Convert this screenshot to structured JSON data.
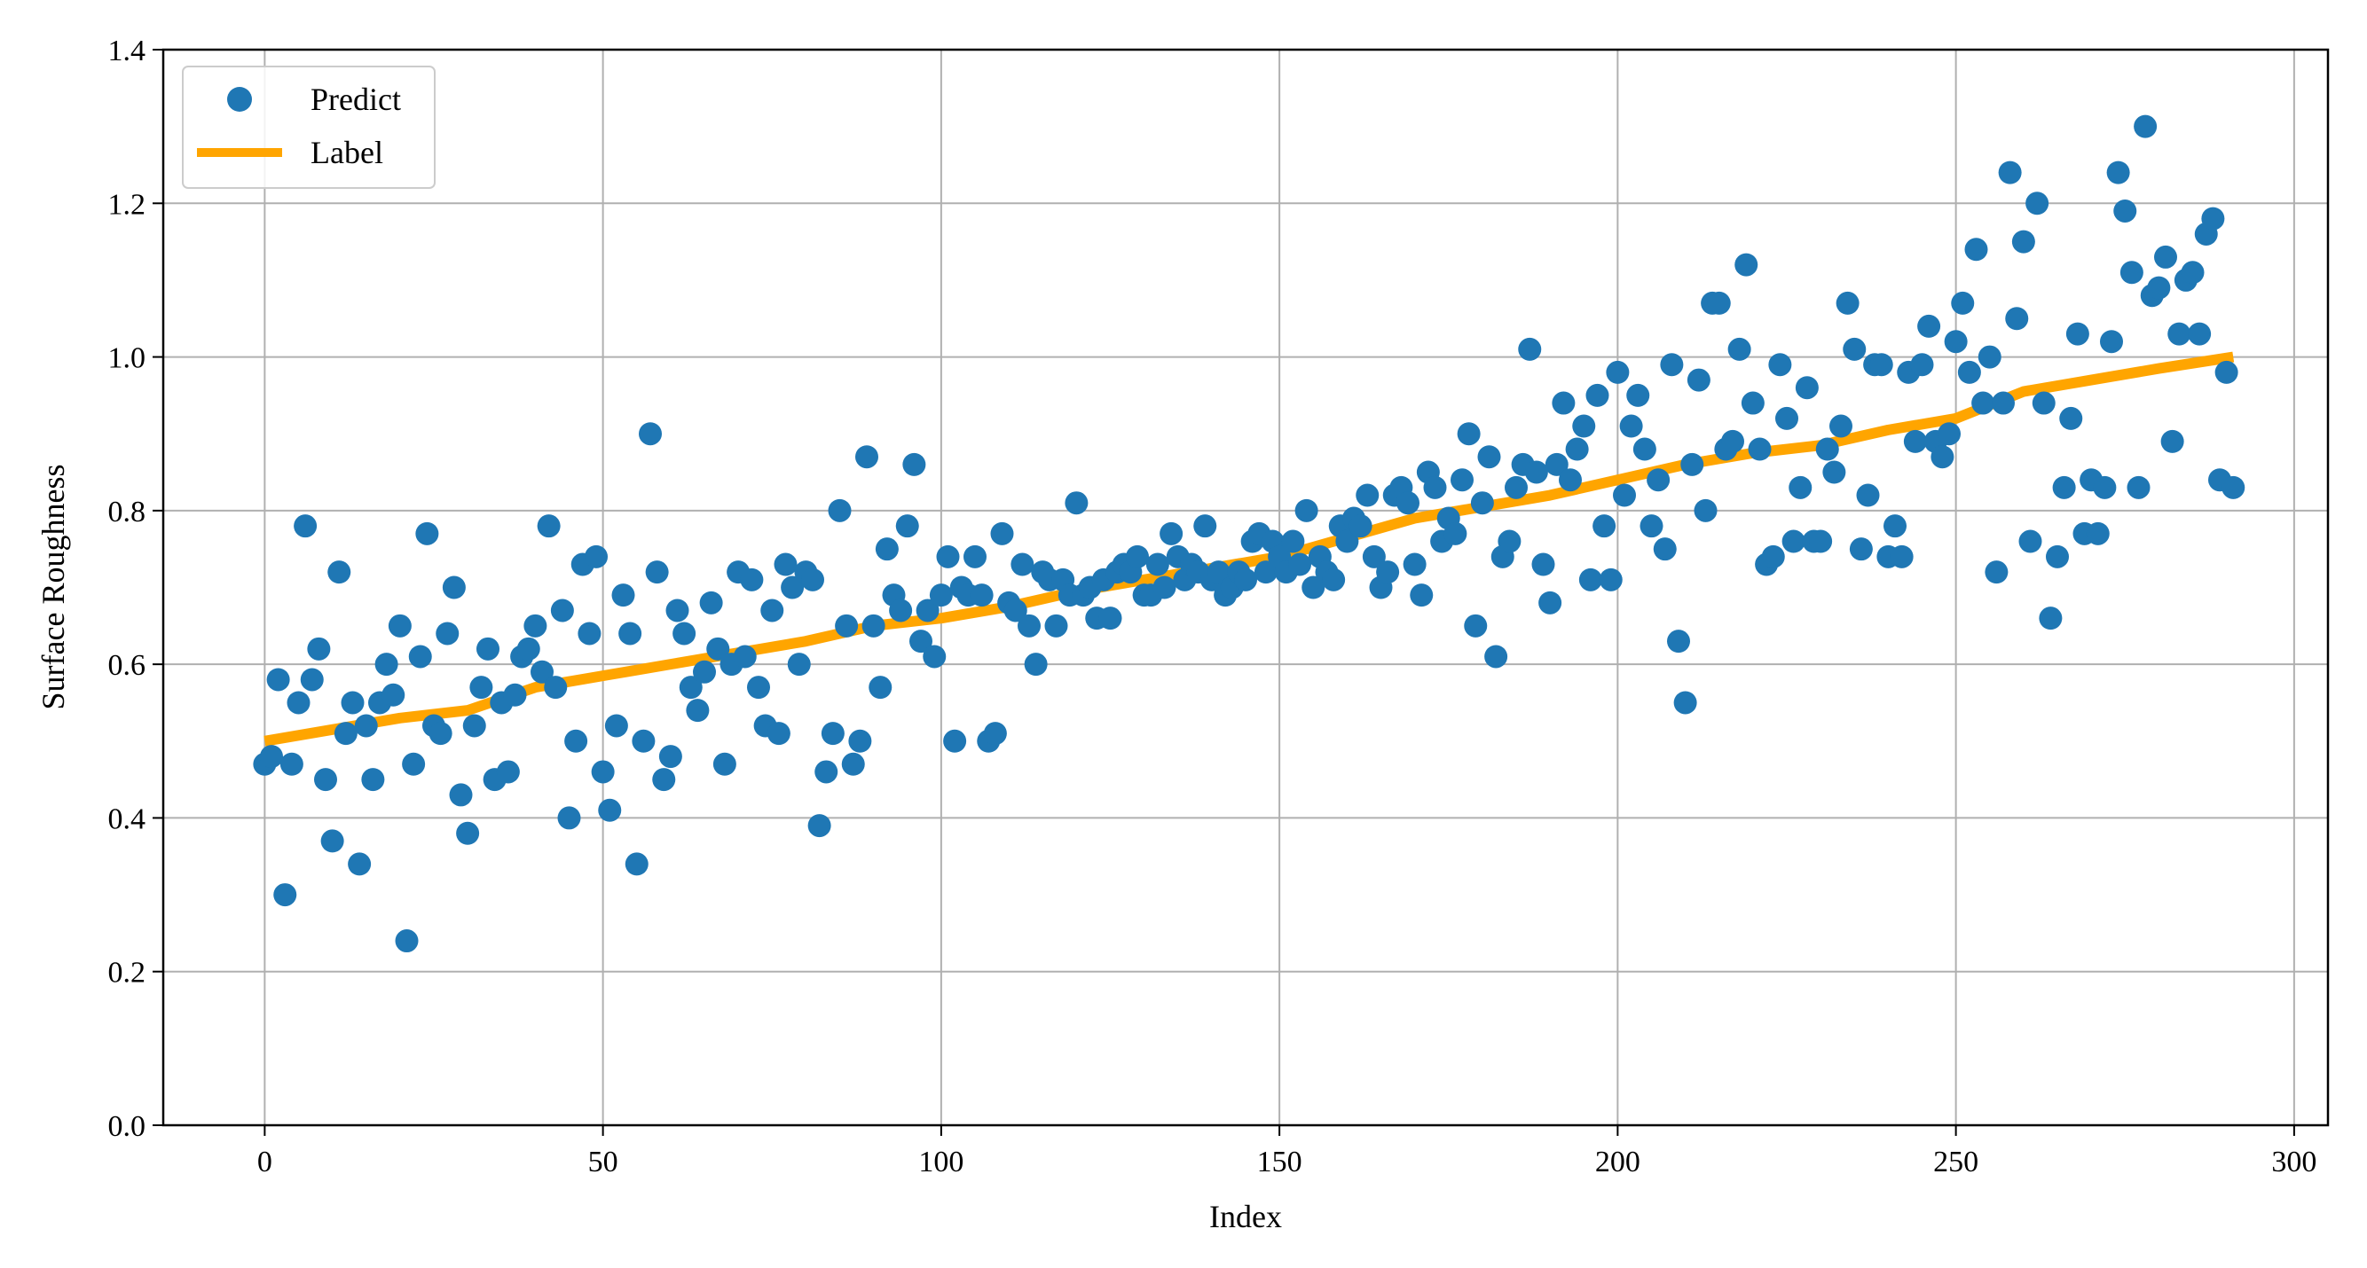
{
  "chart_data": {
    "type": "scatter",
    "title": "",
    "xlabel": "Index",
    "ylabel": "Surface Roughness",
    "xlim": [
      -15,
      305
    ],
    "ylim": [
      0.0,
      1.4
    ],
    "xticks": [
      0,
      50,
      100,
      150,
      200,
      250,
      300
    ],
    "yticks": [
      0.0,
      0.2,
      0.4,
      0.6,
      0.8,
      1.0,
      1.2,
      1.4
    ],
    "xtick_labels": [
      "0",
      "50",
      "100",
      "150",
      "200",
      "250",
      "300"
    ],
    "ytick_labels": [
      "0.0",
      "0.2",
      "0.4",
      "0.6",
      "0.8",
      "1.0",
      "1.2",
      "1.4"
    ],
    "grid": true,
    "legend_position": "top-left",
    "colors": {
      "predict": "#1f77b4",
      "label": "#ffa500"
    },
    "series": [
      {
        "name": "Predict",
        "kind": "scatter",
        "x": [
          0,
          1,
          2,
          3,
          4,
          5,
          6,
          7,
          8,
          9,
          10,
          11,
          12,
          13,
          14,
          15,
          16,
          17,
          18,
          19,
          20,
          21,
          22,
          23,
          24,
          25,
          26,
          27,
          28,
          29,
          30,
          31,
          32,
          33,
          34,
          35,
          36,
          37,
          38,
          39,
          40,
          41,
          42,
          43,
          44,
          45,
          46,
          47,
          48,
          49,
          50,
          51,
          52,
          53,
          54,
          55,
          56,
          57,
          58,
          59,
          60,
          61,
          62,
          63,
          64,
          65,
          66,
          67,
          68,
          69,
          70,
          71,
          72,
          73,
          74,
          75,
          76,
          77,
          78,
          79,
          80,
          81,
          82,
          83,
          84,
          85,
          86,
          87,
          88,
          89,
          90,
          91,
          92,
          93,
          94,
          95,
          96,
          97,
          98,
          99,
          100,
          101,
          102,
          103,
          104,
          105,
          106,
          107,
          108,
          109,
          110,
          111,
          112,
          113,
          114,
          115,
          116,
          117,
          118,
          119,
          120,
          121,
          122,
          123,
          124,
          125,
          126,
          127,
          128,
          129,
          130,
          131,
          132,
          133,
          134,
          135,
          136,
          137,
          138,
          139,
          140,
          141,
          142,
          143,
          144,
          145,
          146,
          147,
          148,
          149,
          150,
          151,
          152,
          153,
          154,
          155,
          156,
          157,
          158,
          159,
          160,
          161,
          162,
          163,
          164,
          165,
          166,
          167,
          168,
          169,
          170,
          171,
          172,
          173,
          174,
          175,
          176,
          177,
          178,
          179,
          180,
          181,
          182,
          183,
          184,
          185,
          186,
          187,
          188,
          189,
          190,
          191,
          192,
          193,
          194,
          195,
          196,
          197,
          198,
          199,
          200,
          201,
          202,
          203,
          204,
          205,
          206,
          207,
          208,
          209,
          210,
          211,
          212,
          213,
          214,
          215,
          216,
          217,
          218,
          219,
          220,
          221,
          222,
          223,
          224,
          225,
          226,
          227,
          228,
          229,
          230,
          231,
          232,
          233,
          234,
          235,
          236,
          237,
          238,
          239,
          240,
          241,
          242,
          243,
          244,
          245,
          246,
          247,
          248,
          249,
          250,
          251,
          252,
          253,
          254,
          255,
          256,
          257,
          258,
          259,
          260,
          261,
          262,
          263,
          264,
          265,
          266,
          267,
          268,
          269,
          270,
          271,
          272,
          273,
          274,
          275,
          276,
          277,
          278,
          279,
          280,
          281,
          282,
          283,
          284,
          285,
          286,
          287,
          288,
          289,
          290,
          291
        ],
        "y": [
          0.47,
          0.48,
          0.58,
          0.3,
          0.47,
          0.55,
          0.78,
          0.58,
          0.62,
          0.45,
          0.37,
          0.72,
          0.51,
          0.55,
          0.34,
          0.52,
          0.45,
          0.55,
          0.6,
          0.56,
          0.65,
          0.24,
          0.47,
          0.61,
          0.77,
          0.52,
          0.51,
          0.64,
          0.7,
          0.43,
          0.38,
          0.52,
          0.57,
          0.62,
          0.45,
          0.55,
          0.46,
          0.56,
          0.61,
          0.62,
          0.65,
          0.59,
          0.78,
          0.57,
          0.67,
          0.4,
          0.5,
          0.73,
          0.64,
          0.74,
          0.46,
          0.41,
          0.52,
          0.69,
          0.64,
          0.34,
          0.5,
          0.9,
          0.72,
          0.45,
          0.48,
          0.67,
          0.64,
          0.57,
          0.54,
          0.59,
          0.68,
          0.62,
          0.47,
          0.6,
          0.72,
          0.61,
          0.71,
          0.57,
          0.52,
          0.67,
          0.51,
          0.73,
          0.7,
          0.6,
          0.72,
          0.71,
          0.39,
          0.46,
          0.51,
          0.8,
          0.65,
          0.47,
          0.5,
          0.87,
          0.65,
          0.57,
          0.75,
          0.69,
          0.67,
          0.78,
          0.86,
          0.63,
          0.67,
          0.61,
          0.69,
          0.74,
          0.5,
          0.7,
          0.69,
          0.74,
          0.69,
          0.5,
          0.51,
          0.77,
          0.68,
          0.67,
          0.73,
          0.65,
          0.6,
          0.72,
          0.71,
          0.65,
          0.71,
          0.69,
          0.81,
          0.69,
          0.7,
          0.66,
          0.71,
          0.66,
          0.72,
          0.73,
          0.72,
          0.74,
          0.69,
          0.69,
          0.73,
          0.7,
          0.77,
          0.74,
          0.71,
          0.73,
          0.72,
          0.78,
          0.71,
          0.72,
          0.69,
          0.7,
          0.72,
          0.71,
          0.76,
          0.77,
          0.72,
          0.76,
          0.74,
          0.72,
          0.76,
          0.73,
          0.8,
          0.7,
          0.74,
          0.72,
          0.71,
          0.78,
          0.76,
          0.79,
          0.78,
          0.82,
          0.74,
          0.7,
          0.72,
          0.82,
          0.83,
          0.81,
          0.73,
          0.69,
          0.85,
          0.83,
          0.76,
          0.79,
          0.77,
          0.84,
          0.9,
          0.65,
          0.81,
          0.87,
          0.61,
          0.74,
          0.76,
          0.83,
          0.86,
          1.01,
          0.85,
          0.73,
          0.68,
          0.86,
          0.94,
          0.84,
          0.88,
          0.91,
          0.71,
          0.95,
          0.78,
          0.71,
          0.98,
          0.82,
          0.91,
          0.95,
          0.88,
          0.78,
          0.84,
          0.75,
          0.99,
          0.63,
          0.55,
          0.86,
          0.97,
          0.8,
          1.07,
          1.07,
          0.88,
          0.89,
          1.01,
          1.12,
          0.94,
          0.88,
          0.73,
          0.74,
          0.99,
          0.92,
          0.76,
          0.83,
          0.96,
          0.76,
          0.76,
          0.88,
          0.85,
          0.91,
          1.07,
          1.01,
          0.75,
          0.82,
          0.99,
          0.99,
          0.74,
          0.78,
          0.74,
          0.98,
          0.89,
          0.99,
          1.04,
          0.89,
          0.87,
          0.9,
          1.02,
          1.07,
          0.98,
          1.14,
          0.94,
          1.0,
          0.72,
          0.94,
          1.24,
          1.05,
          1.15,
          0.76,
          1.2,
          0.94,
          0.66,
          0.74,
          0.83,
          0.92,
          1.03,
          0.77,
          0.84,
          0.77,
          0.83,
          1.02,
          1.24,
          1.19,
          1.11,
          0.83,
          1.3,
          1.08,
          1.09,
          1.13,
          0.89,
          1.03,
          1.1,
          1.11,
          1.03,
          1.16,
          1.18,
          0.84,
          0.98,
          0.83
        ]
      },
      {
        "name": "Label",
        "kind": "line",
        "x": [
          0,
          10,
          20,
          30,
          40,
          50,
          60,
          70,
          80,
          90,
          100,
          110,
          120,
          130,
          140,
          150,
          160,
          170,
          180,
          190,
          200,
          210,
          220,
          230,
          240,
          250,
          260,
          270,
          280,
          291
        ],
        "y": [
          0.5,
          0.515,
          0.53,
          0.54,
          0.57,
          0.585,
          0.6,
          0.615,
          0.63,
          0.65,
          0.66,
          0.675,
          0.695,
          0.71,
          0.725,
          0.74,
          0.765,
          0.79,
          0.805,
          0.82,
          0.84,
          0.86,
          0.875,
          0.885,
          0.905,
          0.92,
          0.955,
          0.97,
          0.985,
          1.0
        ]
      }
    ]
  }
}
